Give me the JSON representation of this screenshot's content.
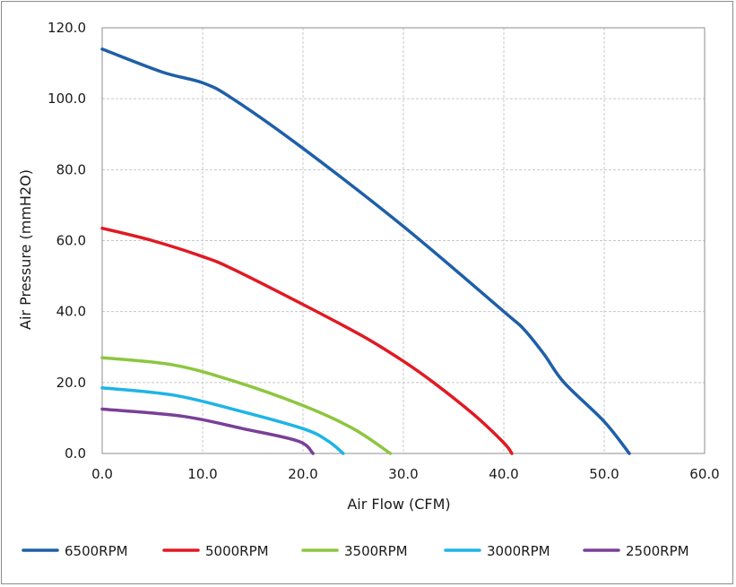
{
  "chart_data": {
    "type": "line",
    "title": "",
    "xlabel": "Air Flow (CFM)",
    "ylabel": "Air Pressure (mmH2O)",
    "xlim": [
      0,
      60
    ],
    "ylim": [
      0,
      120
    ],
    "xticks": [
      "0.0",
      "10.0",
      "20.0",
      "30.0",
      "40.0",
      "50.0",
      "60.0"
    ],
    "yticks": [
      "0.0",
      "20.0",
      "40.0",
      "60.0",
      "80.0",
      "100.0",
      "120.0"
    ],
    "grid": true,
    "legend_position": "bottom",
    "series": [
      {
        "name": "6500RPM",
        "color": "#1f5fa8",
        "points": [
          [
            0,
            114
          ],
          [
            6,
            107.5
          ],
          [
            10,
            104.5
          ],
          [
            13,
            100
          ],
          [
            20,
            86
          ],
          [
            30,
            64
          ],
          [
            40,
            40
          ],
          [
            42,
            35
          ],
          [
            44,
            28
          ],
          [
            46,
            20
          ],
          [
            50,
            9
          ],
          [
            52.5,
            0
          ]
        ]
      },
      {
        "name": "5000RPM",
        "color": "#e01a22",
        "points": [
          [
            0,
            63.5
          ],
          [
            5,
            60
          ],
          [
            10,
            55.5
          ],
          [
            13,
            52
          ],
          [
            20,
            42
          ],
          [
            26,
            33
          ],
          [
            30,
            26
          ],
          [
            33,
            20
          ],
          [
            37,
            11
          ],
          [
            40,
            3
          ],
          [
            40.8,
            0
          ]
        ]
      },
      {
        "name": "3500RPM",
        "color": "#8cc63f",
        "points": [
          [
            0,
            27
          ],
          [
            7,
            25
          ],
          [
            13,
            20.5
          ],
          [
            20,
            13.5
          ],
          [
            25,
            7
          ],
          [
            28.7,
            0
          ]
        ]
      },
      {
        "name": "3000RPM",
        "color": "#1eb4e6",
        "points": [
          [
            0,
            18.5
          ],
          [
            7,
            16.5
          ],
          [
            13,
            12.5
          ],
          [
            20,
            7
          ],
          [
            22.5,
            3.5
          ],
          [
            24,
            0
          ]
        ]
      },
      {
        "name": "2500RPM",
        "color": "#7a3f98",
        "points": [
          [
            0,
            12.5
          ],
          [
            8,
            10.5
          ],
          [
            14,
            7
          ],
          [
            19.5,
            3.5
          ],
          [
            21,
            0
          ]
        ]
      }
    ]
  }
}
